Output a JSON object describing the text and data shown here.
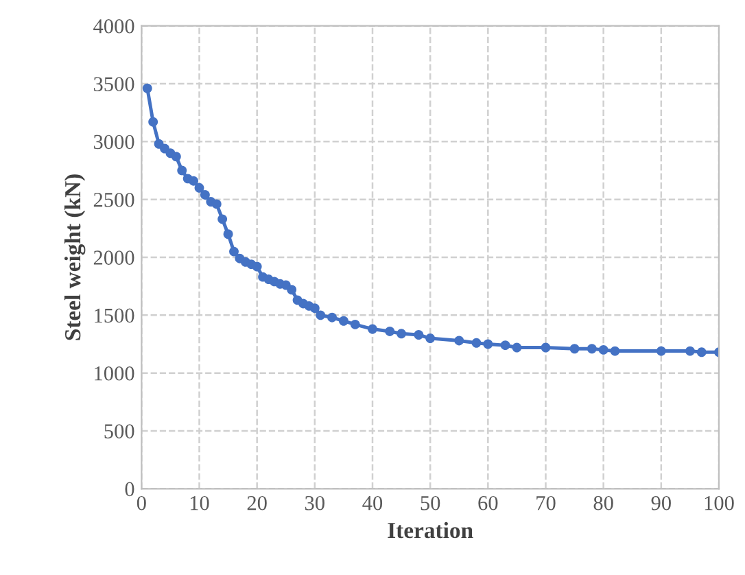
{
  "chart_data": {
    "type": "line",
    "xlabel": "Iteration",
    "ylabel": "Steel weight (kN)",
    "x": [
      1,
      2,
      3,
      4,
      5,
      6,
      7,
      8,
      9,
      10,
      11,
      12,
      13,
      14,
      15,
      16,
      17,
      18,
      19,
      20,
      21,
      22,
      23,
      24,
      25,
      26,
      27,
      28,
      29,
      30,
      31,
      33,
      35,
      37,
      40,
      43,
      45,
      48,
      50,
      55,
      58,
      60,
      63,
      65,
      70,
      75,
      78,
      80,
      82,
      90,
      95,
      97,
      100
    ],
    "series": [
      {
        "color": "#4472c4",
        "values": [
          3460,
          3170,
          2980,
          2940,
          2900,
          2870,
          2750,
          2680,
          2660,
          2600,
          2540,
          2480,
          2460,
          2330,
          2200,
          2050,
          1990,
          1960,
          1940,
          1920,
          1830,
          1810,
          1790,
          1770,
          1760,
          1720,
          1630,
          1600,
          1580,
          1560,
          1500,
          1480,
          1450,
          1420,
          1380,
          1360,
          1340,
          1330,
          1300,
          1280,
          1260,
          1250,
          1240,
          1220,
          1220,
          1210,
          1210,
          1200,
          1190,
          1190,
          1190,
          1180,
          1180
        ]
      }
    ],
    "xlim": [
      0,
      100
    ],
    "xticks": [
      0,
      10,
      20,
      30,
      40,
      50,
      60,
      70,
      80,
      90,
      100
    ],
    "ylim": [
      0,
      4000
    ],
    "yticks": [
      0,
      500,
      1000,
      1500,
      2000,
      2500,
      3000,
      3500,
      4000
    ],
    "grid": true,
    "marker": "circle",
    "line_style": "solid",
    "legend": false
  }
}
